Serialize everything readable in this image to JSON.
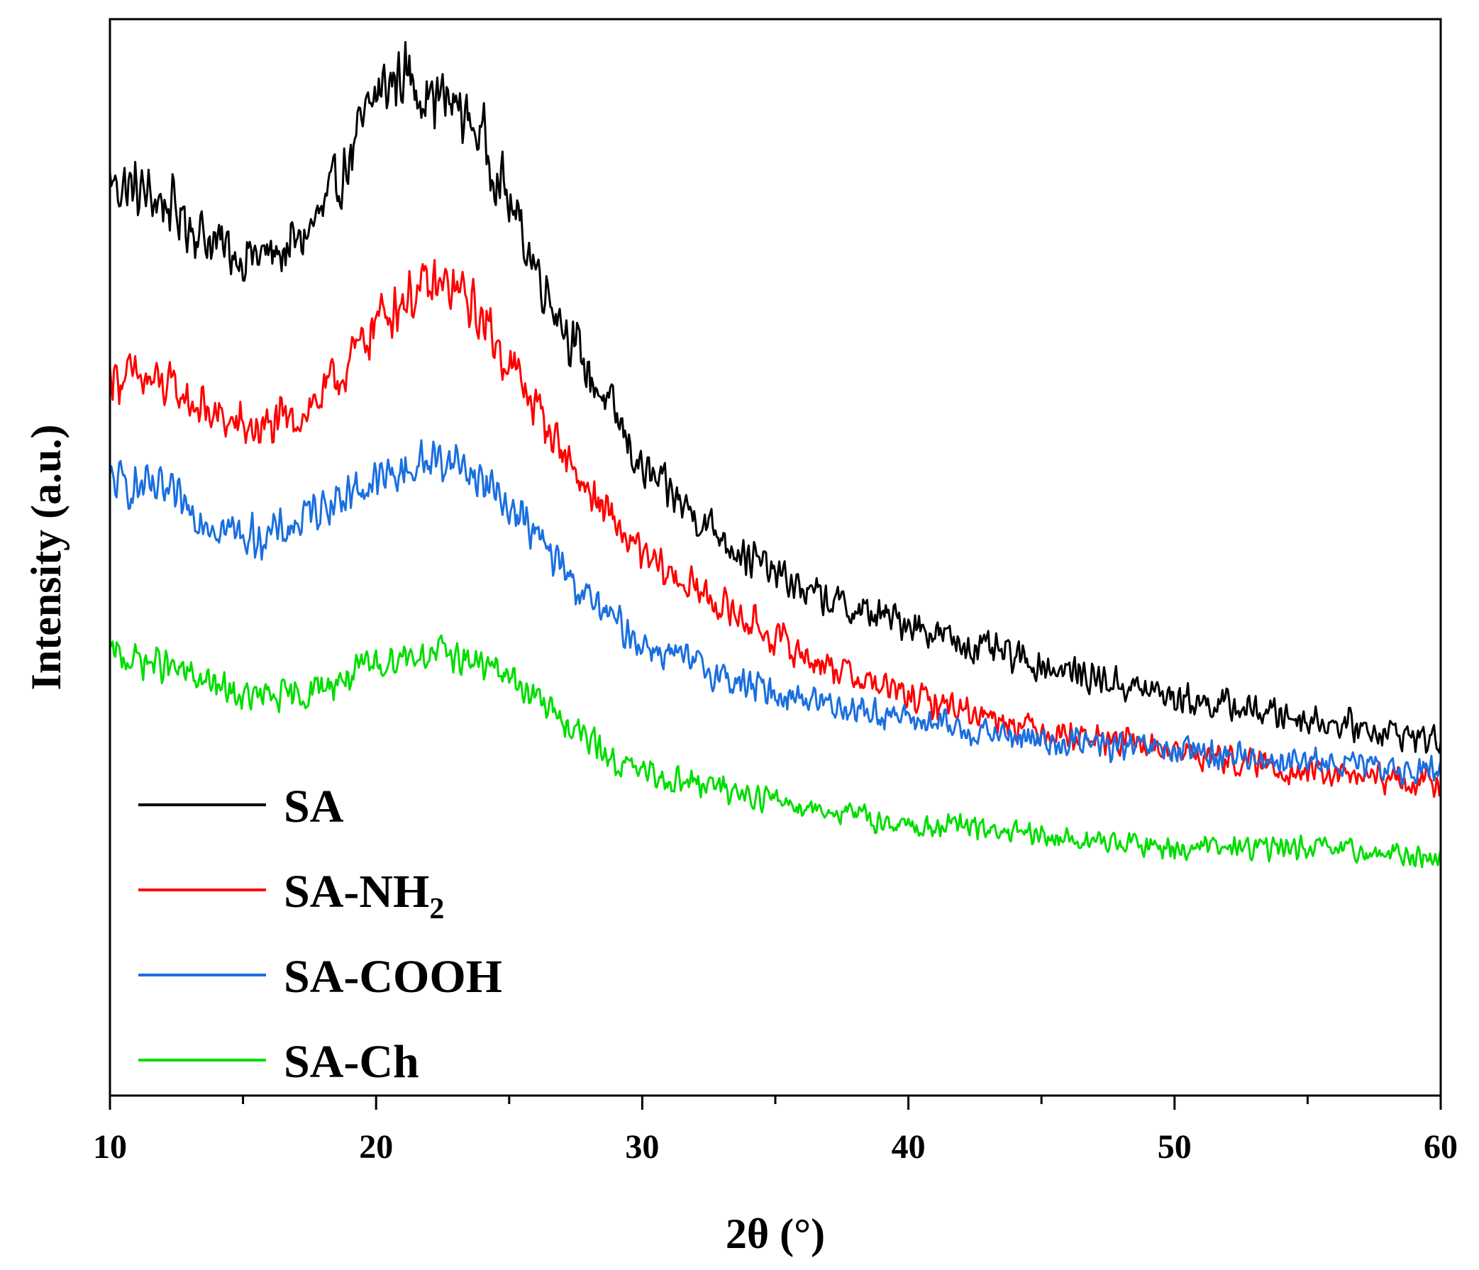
{
  "chart_data": {
    "type": "line",
    "xlabel": "2θ (°)",
    "ylabel": "Intensity (a.u.)",
    "xlim": [
      10,
      60
    ],
    "ylim": [
      0,
      1
    ],
    "x_ticks": [
      "10",
      "20",
      "30",
      "40",
      "50",
      "60"
    ],
    "y_ticks_shown": false,
    "grid": false,
    "legend_position": "bottom-left",
    "series": [
      {
        "name": "SA",
        "legend_label": {
          "main": "SA",
          "subscript": ""
        },
        "color": "#000000",
        "x": [
          10,
          12,
          14,
          15,
          16,
          17,
          18,
          19,
          20,
          21,
          22,
          23,
          24,
          25,
          26,
          27,
          28,
          29,
          30,
          32,
          34,
          36,
          38,
          40,
          42,
          45,
          50,
          55,
          60
        ],
        "y": [
          0.85,
          0.83,
          0.79,
          0.78,
          0.78,
          0.79,
          0.82,
          0.87,
          0.93,
          0.95,
          0.93,
          0.92,
          0.89,
          0.83,
          0.77,
          0.72,
          0.67,
          0.63,
          0.58,
          0.54,
          0.5,
          0.47,
          0.45,
          0.44,
          0.42,
          0.4,
          0.37,
          0.35,
          0.33
        ]
      },
      {
        "name": "SA-NH2",
        "legend_label": {
          "main": "SA-NH",
          "subscript": "2"
        },
        "color": "#ff0000",
        "x": [
          10,
          12,
          14,
          15,
          16,
          17,
          18,
          19,
          20,
          21,
          22,
          23,
          24,
          25,
          26,
          27,
          28,
          29,
          30,
          32,
          34,
          36,
          38,
          40,
          42,
          45,
          50,
          55,
          60
        ],
        "y": [
          0.67,
          0.66,
          0.63,
          0.62,
          0.62,
          0.63,
          0.65,
          0.68,
          0.72,
          0.74,
          0.75,
          0.75,
          0.72,
          0.68,
          0.64,
          0.6,
          0.56,
          0.53,
          0.5,
          0.47,
          0.44,
          0.41,
          0.39,
          0.37,
          0.36,
          0.34,
          0.32,
          0.3,
          0.29
        ]
      },
      {
        "name": "SA-COOH",
        "legend_label": {
          "main": "SA-COOH",
          "subscript": ""
        },
        "color": "#1a6fdf",
        "x": [
          10,
          12,
          14,
          15,
          16,
          17,
          18,
          19,
          20,
          21,
          22,
          23,
          24,
          25,
          26,
          27,
          28,
          29,
          30,
          32,
          34,
          36,
          38,
          40,
          42,
          45,
          50,
          55,
          60
        ],
        "y": [
          0.57,
          0.56,
          0.53,
          0.52,
          0.52,
          0.53,
          0.55,
          0.56,
          0.57,
          0.58,
          0.59,
          0.59,
          0.57,
          0.55,
          0.52,
          0.49,
          0.46,
          0.44,
          0.42,
          0.4,
          0.38,
          0.37,
          0.36,
          0.35,
          0.34,
          0.33,
          0.32,
          0.31,
          0.3
        ]
      },
      {
        "name": "SA-Ch",
        "legend_label": {
          "main": "SA-Ch",
          "subscript": ""
        },
        "color": "#00dd00",
        "x": [
          10,
          12,
          14,
          15,
          16,
          17,
          18,
          19,
          20,
          21,
          22,
          23,
          24,
          25,
          26,
          27,
          28,
          29,
          30,
          32,
          34,
          36,
          38,
          40,
          42,
          45,
          50,
          55,
          60
        ],
        "y": [
          0.41,
          0.4,
          0.38,
          0.37,
          0.37,
          0.37,
          0.38,
          0.39,
          0.4,
          0.41,
          0.41,
          0.41,
          0.4,
          0.39,
          0.37,
          0.35,
          0.33,
          0.31,
          0.3,
          0.29,
          0.28,
          0.27,
          0.26,
          0.25,
          0.25,
          0.24,
          0.23,
          0.23,
          0.22
        ]
      }
    ]
  }
}
